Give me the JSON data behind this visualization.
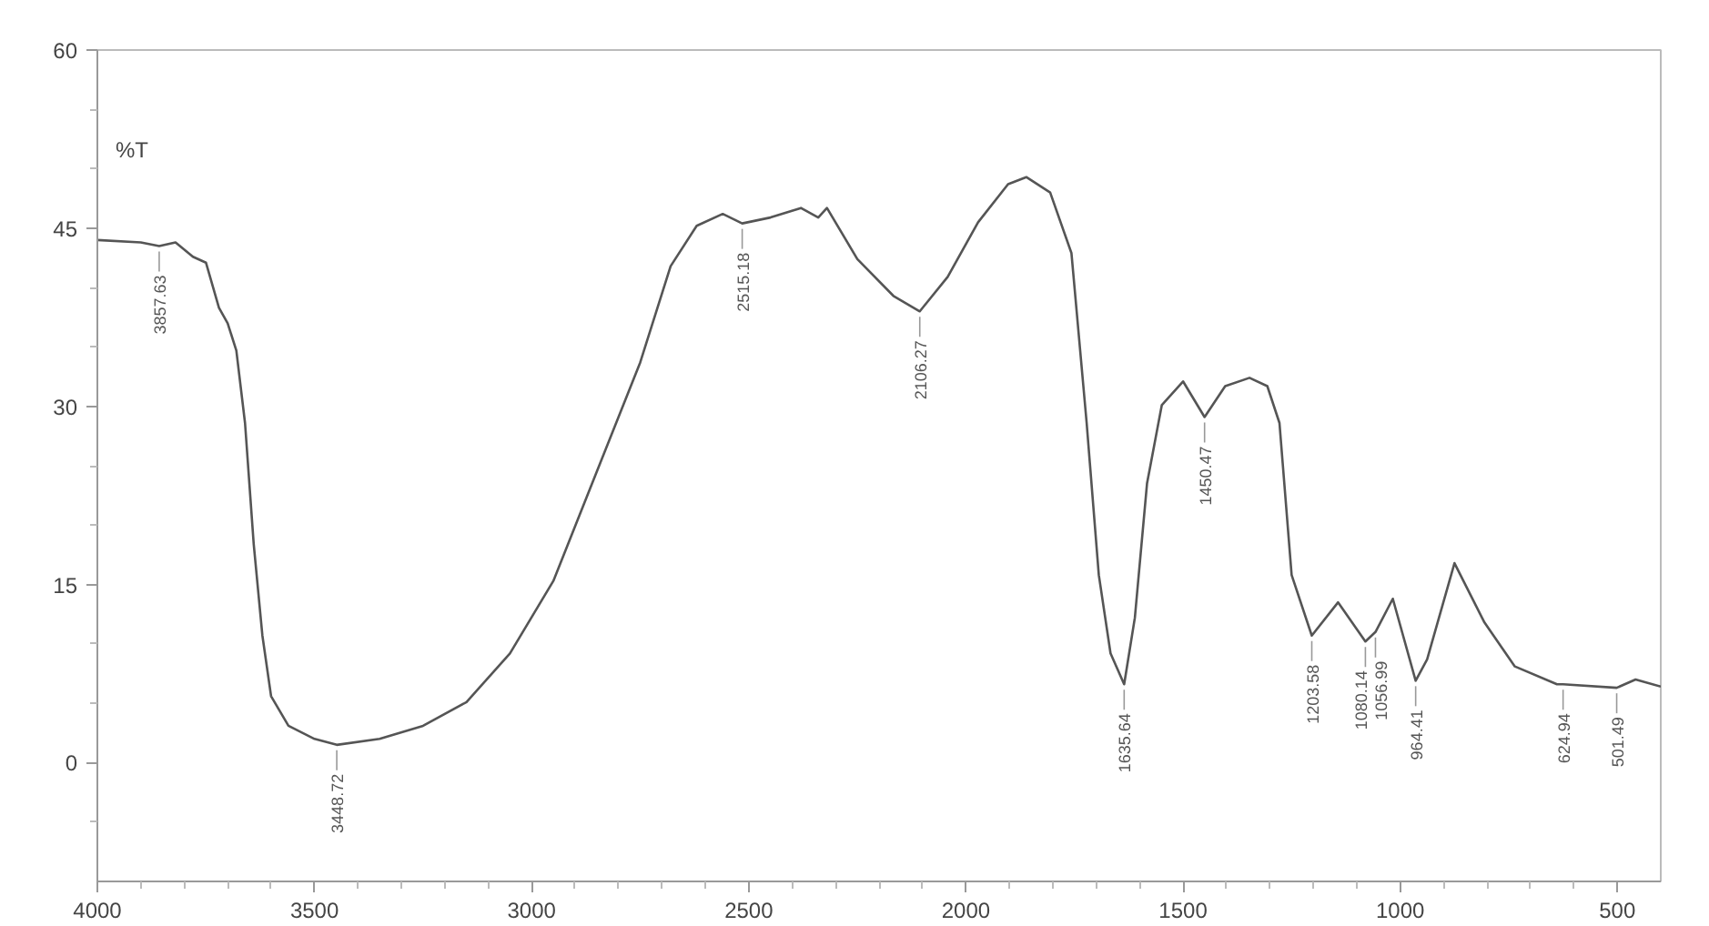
{
  "chart_data": {
    "type": "line",
    "ylabel": "%T",
    "x": [
      4000,
      3900,
      3857.63,
      3820,
      3780,
      3750,
      3720,
      3700,
      3680,
      3660,
      3640,
      3620,
      3600,
      3560,
      3500,
      3448.72,
      3350,
      3250,
      3150,
      3050,
      2950,
      2850,
      2750,
      2680,
      2620,
      2560,
      2515.18,
      2450,
      2380,
      2340,
      2320,
      2250,
      2167,
      2106.27,
      2042,
      1972,
      1903,
      1861,
      1806,
      1757,
      1722,
      1694,
      1667,
      1635.64,
      1611,
      1583,
      1549,
      1500,
      1450.47,
      1403,
      1347,
      1306,
      1278,
      1250,
      1203.58,
      1143,
      1080.14,
      1056.99,
      1017,
      964.41,
      938,
      875,
      806,
      736,
      639,
      624.94,
      501.49,
      458,
      400
    ],
    "series": [
      {
        "color": "#555555",
        "values": [
          44.0,
          43.8,
          43.5,
          43.8,
          42.6,
          42.1,
          38.3,
          37.0,
          34.7,
          28.6,
          18.4,
          10.7,
          5.6,
          3.1,
          2.0,
          1.5,
          2.0,
          3.1,
          5.1,
          9.2,
          15.3,
          24.5,
          33.7,
          41.8,
          45.2,
          46.2,
          45.4,
          45.9,
          46.7,
          45.9,
          46.7,
          42.4,
          39.3,
          38.0,
          40.9,
          45.5,
          48.7,
          49.3,
          48.0,
          42.9,
          28.6,
          15.8,
          9.2,
          6.6,
          12.2,
          23.5,
          30.1,
          32.1,
          29.1,
          31.7,
          32.4,
          31.7,
          28.6,
          15.8,
          10.7,
          13.5,
          10.2,
          11.0,
          13.8,
          6.9,
          8.7,
          16.8,
          11.8,
          8.1,
          6.6,
          6.6,
          6.3,
          7.0,
          6.4
        ]
      }
    ],
    "xlim": [
      4000,
      400
    ],
    "ylim": [
      -10,
      60
    ],
    "xticks": [
      4000,
      {
        "value": 3900,
        "label": null
      },
      {
        "value": 3800,
        "label": null
      },
      {
        "value": 3700,
        "label": null
      },
      {
        "value": 3600,
        "label": null
      },
      3500,
      {
        "value": 3400,
        "label": null
      },
      {
        "value": 3300,
        "label": null
      },
      {
        "value": 3200,
        "label": null
      },
      {
        "value": 3100,
        "label": null
      },
      3000,
      {
        "value": 2900,
        "label": null
      },
      {
        "value": 2800,
        "label": null
      },
      {
        "value": 2700,
        "label": null
      },
      {
        "value": 2600,
        "label": null
      },
      2500,
      {
        "value": 2400,
        "label": null
      },
      {
        "value": 2300,
        "label": null
      },
      {
        "value": 2200,
        "label": null
      },
      {
        "value": 2100,
        "label": null
      },
      2000,
      {
        "value": 1900,
        "label": null
      },
      {
        "value": 1800,
        "label": null
      },
      {
        "value": 1700,
        "label": null
      },
      {
        "value": 1600,
        "label": null
      },
      1500,
      {
        "value": 1400,
        "label": null
      },
      {
        "value": 1300,
        "label": null
      },
      {
        "value": 1200,
        "label": null
      },
      {
        "value": 1100,
        "label": null
      },
      1000,
      {
        "value": 900,
        "label": null
      },
      {
        "value": 800,
        "label": null
      },
      {
        "value": 700,
        "label": null
      },
      {
        "value": 600,
        "label": null
      },
      500
    ],
    "yticks": [
      {
        "value": -5,
        "label": null
      },
      0,
      {
        "value": 5,
        "label": null
      },
      {
        "value": 10,
        "label": null
      },
      15,
      {
        "value": 20,
        "label": null
      },
      {
        "value": 25,
        "label": null
      },
      30,
      {
        "value": 35,
        "label": null
      },
      {
        "value": 40,
        "label": null
      },
      45,
      {
        "value": 50,
        "label": null
      },
      {
        "value": 55,
        "label": null
      },
      60
    ],
    "grid": false,
    "marker": "none",
    "line_style": "solid",
    "annotations": [
      {
        "text": "3857.63",
        "x": 3857.63,
        "y": 43.5
      },
      {
        "text": "3448.72",
        "x": 3448.72,
        "y": 1.5
      },
      {
        "text": "2515.18",
        "x": 2515.18,
        "y": 45.4
      },
      {
        "text": "2106.27",
        "x": 2106.27,
        "y": 38.0
      },
      {
        "text": "1635.64",
        "x": 1635.64,
        "y": 6.6
      },
      {
        "text": "1450.47",
        "x": 1450.47,
        "y": 29.1
      },
      {
        "text": "1203.58",
        "x": 1203.58,
        "y": 10.7
      },
      {
        "text": "1080.14",
        "x": 1080.14,
        "y": 10.2
      },
      {
        "text": "1056.99",
        "x": 1056.99,
        "y": 11.0
      },
      {
        "text": "964.41",
        "x": 964.41,
        "y": 6.9
      },
      {
        "text": "624.94",
        "x": 624.94,
        "y": 6.6
      },
      {
        "text": "501.49",
        "x": 501.49,
        "y": 6.3
      }
    ]
  }
}
